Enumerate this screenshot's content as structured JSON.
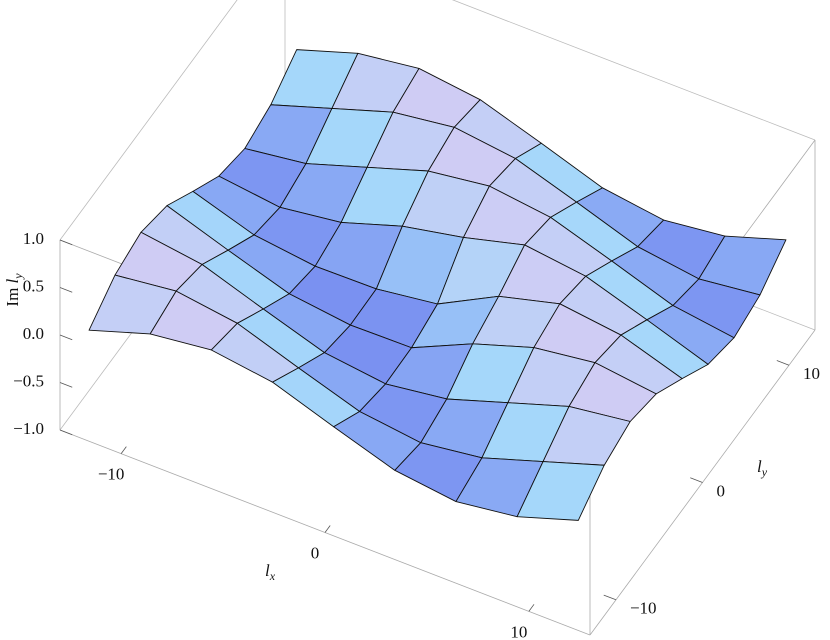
{
  "chart_data": {
    "type": "surface",
    "xlabel": {
      "base": "l",
      "sub": "x"
    },
    "ylabel": {
      "base": "l",
      "sub": "y"
    },
    "zlabel": {
      "prefix": "Im ",
      "base": "l",
      "sub": "y"
    },
    "x": [
      -12,
      -9,
      -6,
      -3,
      0,
      3,
      6,
      9,
      12
    ],
    "y": [
      -12,
      -9,
      -6,
      -3,
      0,
      3,
      6,
      9,
      12
    ],
    "z": [
      [
        0.01,
        0.22,
        0.3,
        0.21,
        -0.01,
        -0.22,
        -0.3,
        -0.21,
        0
      ],
      [
        0.22,
        0.3,
        0.21,
        -0.01,
        -0.22,
        -0.3,
        -0.21,
        0,
        0.21
      ],
      [
        0.3,
        0.21,
        -0.01,
        -0.22,
        -0.3,
        -0.21,
        0,
        0.21,
        0.3
      ],
      [
        0.21,
        -0.01,
        -0.22,
        -0.3,
        -0.29,
        0,
        0.21,
        0.3,
        0.22
      ],
      [
        -0.01,
        -0.22,
        -0.3,
        -0.29,
        -0.2,
        0.13,
        0.3,
        0.22,
        0.01
      ],
      [
        -0.22,
        -0.3,
        -0.21,
        0,
        0.13,
        0.3,
        0.22,
        0.01,
        -0.21
      ],
      [
        -0.3,
        -0.21,
        0,
        0.21,
        0.3,
        0.22,
        0.01,
        -0.21,
        -0.3
      ],
      [
        -0.21,
        0,
        0.21,
        0.3,
        0.22,
        0.01,
        -0.21,
        -0.3,
        -0.22
      ],
      [
        0,
        0.21,
        0.3,
        0.22,
        0.01,
        -0.21,
        -0.3,
        -0.22,
        -0.01
      ]
    ],
    "xlim": [
      -13,
      13
    ],
    "ylim": [
      -13,
      13
    ],
    "zlim": [
      -1,
      1
    ],
    "xticks": [
      {
        "value": -10,
        "label": "−10"
      },
      0,
      10
    ],
    "yticks": [
      {
        "value": -10,
        "label": "−10"
      },
      0,
      10
    ],
    "zticks": [
      {
        "value": -1,
        "label": "−1.0"
      },
      {
        "value": -0.5,
        "label": "−0.5"
      },
      {
        "value": 0,
        "label": "0.0"
      },
      0.5,
      {
        "value": 1,
        "label": "1.0"
      }
    ],
    "mesh": true
  }
}
